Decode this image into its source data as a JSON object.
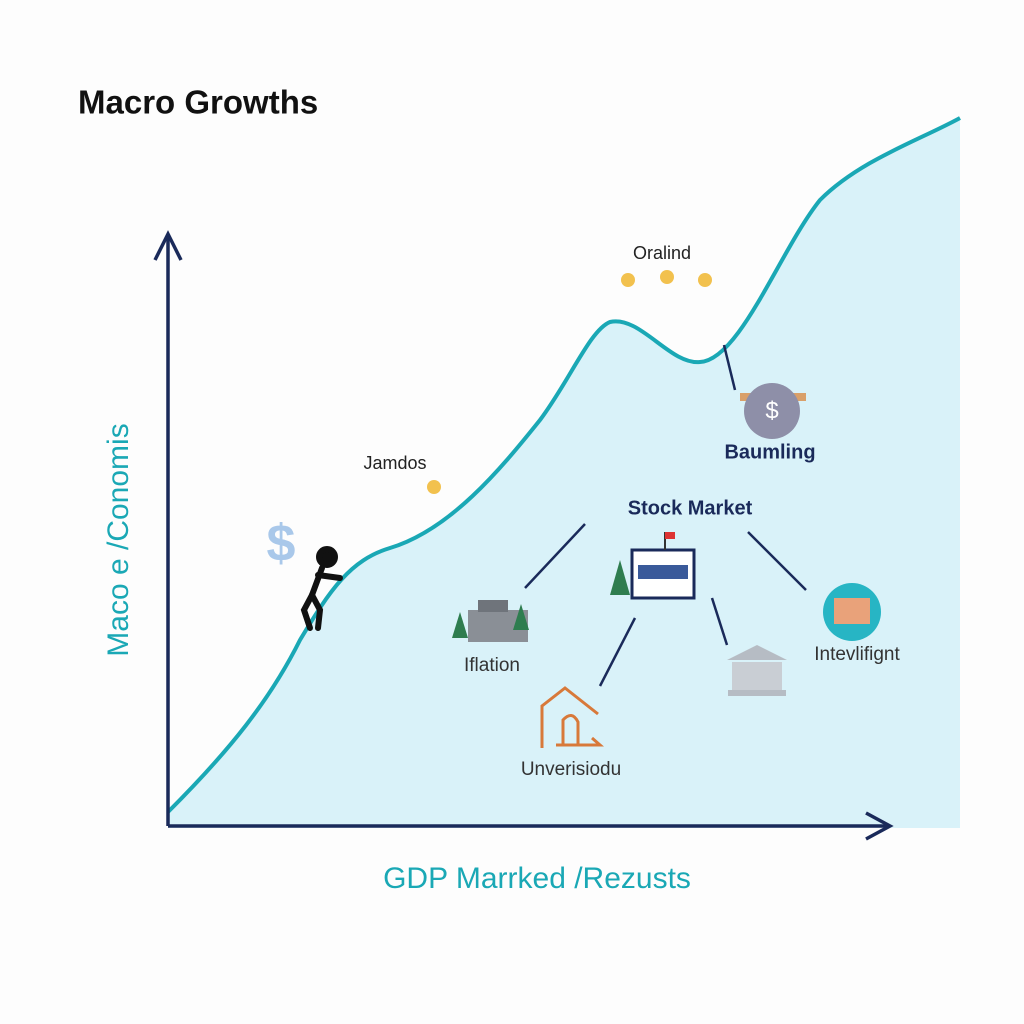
{
  "header": {
    "title": "Macro Growths"
  },
  "axes": {
    "y_label": "Maco e /Conomis",
    "x_label": "GDP Marrked /Rezusts"
  },
  "labels": {
    "peak": "Oralind",
    "early": "Jamdos",
    "bank": "Baumling",
    "hub": "Stock Market",
    "left": "Iflation",
    "right": "Intevlifignt",
    "bottom": "Unverisiodu"
  },
  "symbols": {
    "big_dollar": "$",
    "coin_dollar": "$"
  }
}
